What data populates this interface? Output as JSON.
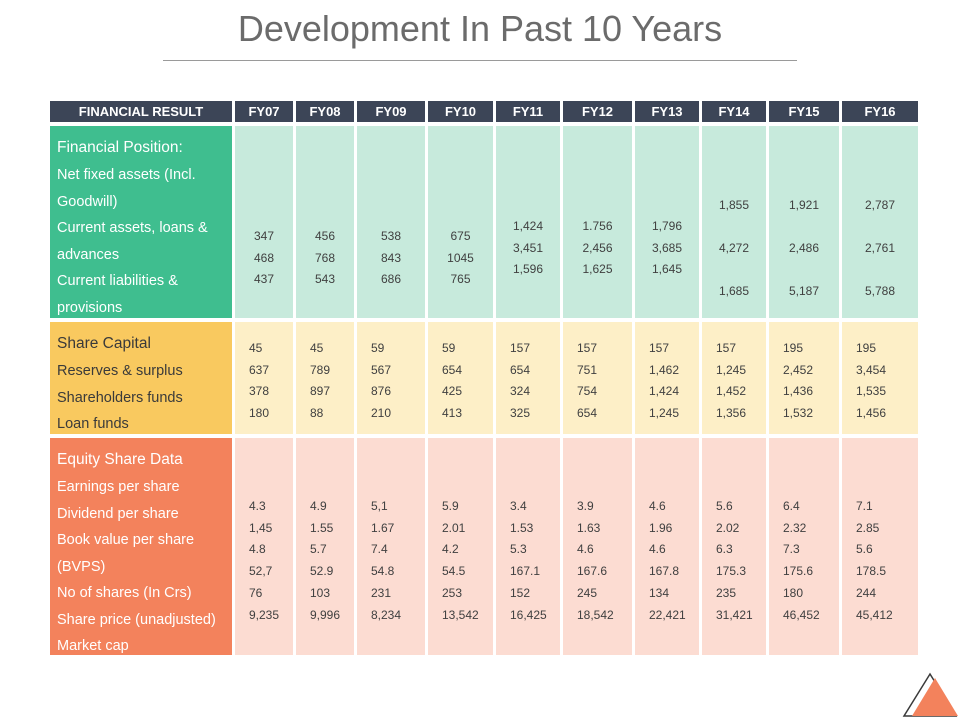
{
  "title": "Development In Past 10 Years",
  "columns": [
    "FINANCIAL RESULT",
    "FY07",
    "FY08",
    "FY09",
    "FY10",
    "FY11",
    "FY12",
    "FY13",
    "FY14",
    "FY15",
    "FY16"
  ],
  "sections": [
    {
      "heading": "Financial Position:",
      "items": [
        "Net fixed assets (Incl.",
        "Goodwill)",
        "Current assets, loans &",
        "advances",
        "Current liabilities &",
        "provisions"
      ],
      "values": [
        [
          "347",
          "468",
          "437"
        ],
        [
          "456",
          "768",
          "543"
        ],
        [
          "538",
          "843",
          "686"
        ],
        [
          "675",
          "1045",
          "765"
        ],
        [
          "1,424",
          "3,451",
          "1,596"
        ],
        [
          "1.756",
          "2,456",
          "1,625"
        ],
        [
          "1,796",
          "3,685",
          "1,645"
        ],
        [
          "1,855",
          "4,272",
          "1,685"
        ],
        [
          "1,921",
          "2,486",
          "5,187"
        ],
        [
          "2,787",
          "2,761",
          "5,788"
        ]
      ]
    },
    {
      "heading": "Share Capital",
      "items": [
        "Reserves & surplus",
        "Shareholders funds",
        "Loan funds"
      ],
      "values": [
        [
          "45",
          "637",
          "378",
          "180"
        ],
        [
          "45",
          "789",
          "897",
          "88"
        ],
        [
          "59",
          "567",
          "876",
          "210"
        ],
        [
          "59",
          "654",
          "425",
          "413"
        ],
        [
          "157",
          "654",
          "324",
          "325"
        ],
        [
          "157",
          "751",
          "754",
          "654"
        ],
        [
          "157",
          "1,462",
          "1,424",
          "1,245"
        ],
        [
          "157",
          "1,245",
          "1,452",
          "1,356"
        ],
        [
          "195",
          "2,452",
          "1,436",
          "1,532"
        ],
        [
          "195",
          "3,454",
          "1,535",
          "1,456"
        ]
      ]
    },
    {
      "heading": "Equity Share Data",
      "items": [
        "Earnings per share",
        "Dividend per share",
        "Book value per share",
        "(BVPS)",
        "No of shares (In Crs)",
        "Share price (unadjusted)",
        "Market cap"
      ],
      "values": [
        [
          "4.3",
          "1,45",
          "4.8",
          "52,7",
          "76",
          "9,235"
        ],
        [
          "4.9",
          "1.55",
          "5.7",
          "52.9",
          "103",
          "9,996"
        ],
        [
          "5,1",
          "1.67",
          "7.4",
          "54.8",
          "231",
          "8,234"
        ],
        [
          "5.9",
          "2.01",
          "4.2",
          "54.5",
          "253",
          "13,542"
        ],
        [
          "3.4",
          "1.53",
          "5.3",
          "167.1",
          "152",
          "16,425"
        ],
        [
          "3.9",
          "1.63",
          "4.6",
          "167.6",
          "245",
          "18,542"
        ],
        [
          "4.6",
          "1.96",
          "4.6",
          "167.8",
          "134",
          "22,421"
        ],
        [
          "5.6",
          "2.02",
          "6.3",
          "175.3",
          "235",
          "31,421"
        ],
        [
          "6.4",
          "2.32",
          "7.3",
          "175.6",
          "180",
          "46,452"
        ],
        [
          "7.1",
          "2.85",
          "5.6",
          "178.5",
          "244",
          "45,412"
        ]
      ]
    }
  ],
  "colors": {
    "header": "#3c4557",
    "section1": "#3fbe8f",
    "section1_light": "#c7eadc",
    "section2": "#f9c95f",
    "section2_light": "#fdefc7",
    "section3": "#f3825c",
    "section3_light": "#fcdcd2"
  },
  "logo": "triangle-logo-icon"
}
